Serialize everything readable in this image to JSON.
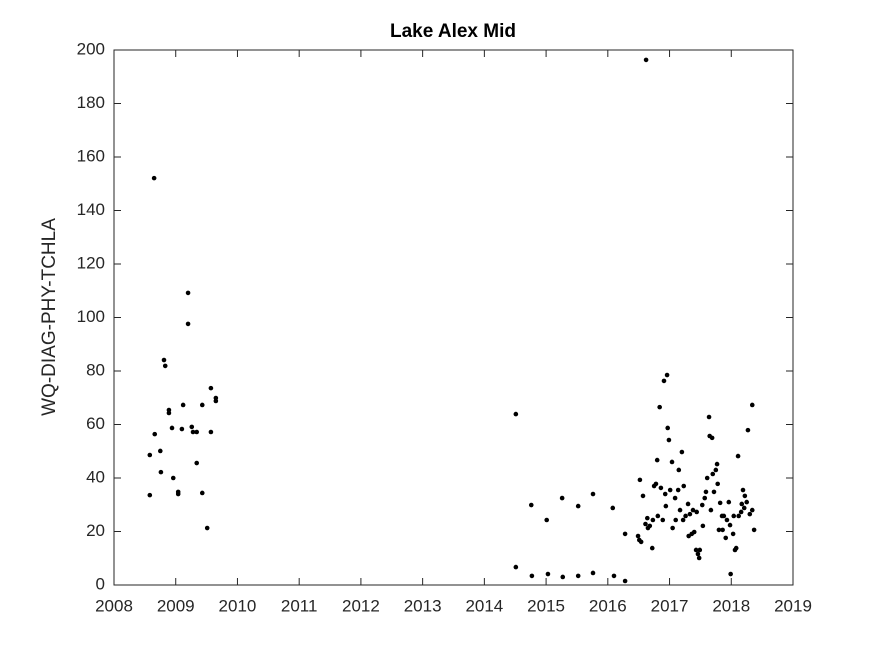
{
  "chart_data": {
    "type": "scatter",
    "title": "Lake Alex Mid",
    "ylabel": "WQ-DIAG-PHY-TCHLA",
    "color": "#000000",
    "x": [
      2008.58,
      2008.58,
      2008.65,
      2008.66,
      2008.75,
      2008.76,
      2008.81,
      2008.83,
      2008.89,
      2008.89,
      2008.94,
      2008.96,
      2009.04,
      2009.04,
      2009.1,
      2009.12,
      2009.2,
      2009.2,
      2009.26,
      2009.28,
      2009.34,
      2009.34,
      2009.43,
      2009.43,
      2009.51,
      2009.57,
      2009.57,
      2009.65,
      2009.65,
      2014.51,
      2014.51,
      2014.76,
      2014.77,
      2015.01,
      2015.03,
      2015.26,
      2015.27,
      2015.52,
      2015.52,
      2015.76,
      2015.76,
      2016.08,
      2016.1,
      2016.28,
      2016.28,
      2016.49,
      2016.51,
      2016.52,
      2016.54,
      2016.57,
      2016.61,
      2016.62,
      2016.64,
      2016.65,
      2016.68,
      2016.72,
      2016.73,
      2016.75,
      2016.78,
      2016.8,
      2016.81,
      2016.84,
      2016.86,
      2016.89,
      2016.91,
      2016.93,
      2016.94,
      2016.96,
      2016.97,
      2016.99,
      2017.01,
      2017.04,
      2017.05,
      2017.09,
      2017.1,
      2017.14,
      2017.15,
      2017.17,
      2017.2,
      2017.22,
      2017.23,
      2017.26,
      2017.3,
      2017.31,
      2017.33,
      2017.36,
      2017.38,
      2017.4,
      2017.43,
      2017.44,
      2017.46,
      2017.48,
      2017.49,
      2017.53,
      2017.54,
      2017.57,
      2017.59,
      2017.61,
      2017.64,
      2017.65,
      2017.67,
      2017.69,
      2017.7,
      2017.72,
      2017.75,
      2017.77,
      2017.78,
      2017.8,
      2017.82,
      2017.85,
      2017.86,
      2017.88,
      2017.91,
      2017.93,
      2017.96,
      2017.98,
      2017.99,
      2018.03,
      2018.04,
      2018.06,
      2018.08,
      2018.11,
      2018.12,
      2018.16,
      2018.17,
      2018.19,
      2018.21,
      2018.22,
      2018.25,
      2018.27,
      2018.3,
      2018.34,
      2018.34,
      2018.37
    ],
    "values": [
      48.6,
      33.6,
      152.1,
      56.4,
      50.1,
      42.2,
      84.1,
      81.9,
      65.4,
      64.3,
      58.7,
      40.0,
      34.8,
      34.0,
      58.3,
      67.3,
      109.2,
      97.6,
      59.1,
      57.2,
      57.2,
      45.6,
      67.3,
      34.4,
      21.3,
      73.6,
      57.2,
      69.9,
      68.8,
      63.9,
      6.7,
      29.9,
      3.4,
      24.3,
      4.1,
      32.5,
      3.0,
      29.5,
      3.4,
      34.0,
      4.5,
      28.8,
      3.4,
      19.1,
      1.5,
      18.3,
      16.8,
      39.3,
      16.1,
      33.3,
      22.8,
      196.3,
      25.0,
      21.3,
      22.1,
      13.8,
      24.3,
      37.0,
      37.8,
      46.7,
      25.8,
      66.5,
      36.3,
      24.3,
      76.3,
      34.0,
      29.5,
      78.5,
      58.7,
      54.2,
      35.5,
      46.0,
      21.3,
      32.5,
      24.3,
      35.5,
      43.0,
      28.0,
      49.7,
      24.3,
      37.0,
      25.8,
      30.3,
      18.3,
      26.5,
      19.1,
      28.0,
      19.8,
      13.1,
      27.3,
      11.6,
      10.1,
      13.1,
      29.9,
      22.1,
      32.5,
      34.8,
      40.0,
      62.8,
      55.7,
      28.0,
      55.0,
      41.5,
      34.8,
      43.0,
      45.2,
      37.8,
      20.6,
      30.7,
      25.8,
      20.6,
      25.8,
      17.6,
      24.3,
      31.0,
      22.4,
      4.1,
      19.1,
      25.8,
      13.1,
      13.8,
      48.2,
      25.8,
      27.3,
      30.3,
      35.5,
      28.8,
      33.3,
      31.0,
      57.9,
      26.5,
      67.3,
      28.0,
      20.6
    ],
    "xlim": [
      2008,
      2019
    ],
    "xticks": [
      2008,
      2009,
      2010,
      2011,
      2012,
      2013,
      2014,
      2015,
      2016,
      2017,
      2018,
      2019
    ],
    "ylim": [
      0,
      200
    ],
    "yticks": [
      0,
      20,
      40,
      60,
      80,
      100,
      120,
      140,
      160,
      180,
      200
    ],
    "grid": false
  }
}
